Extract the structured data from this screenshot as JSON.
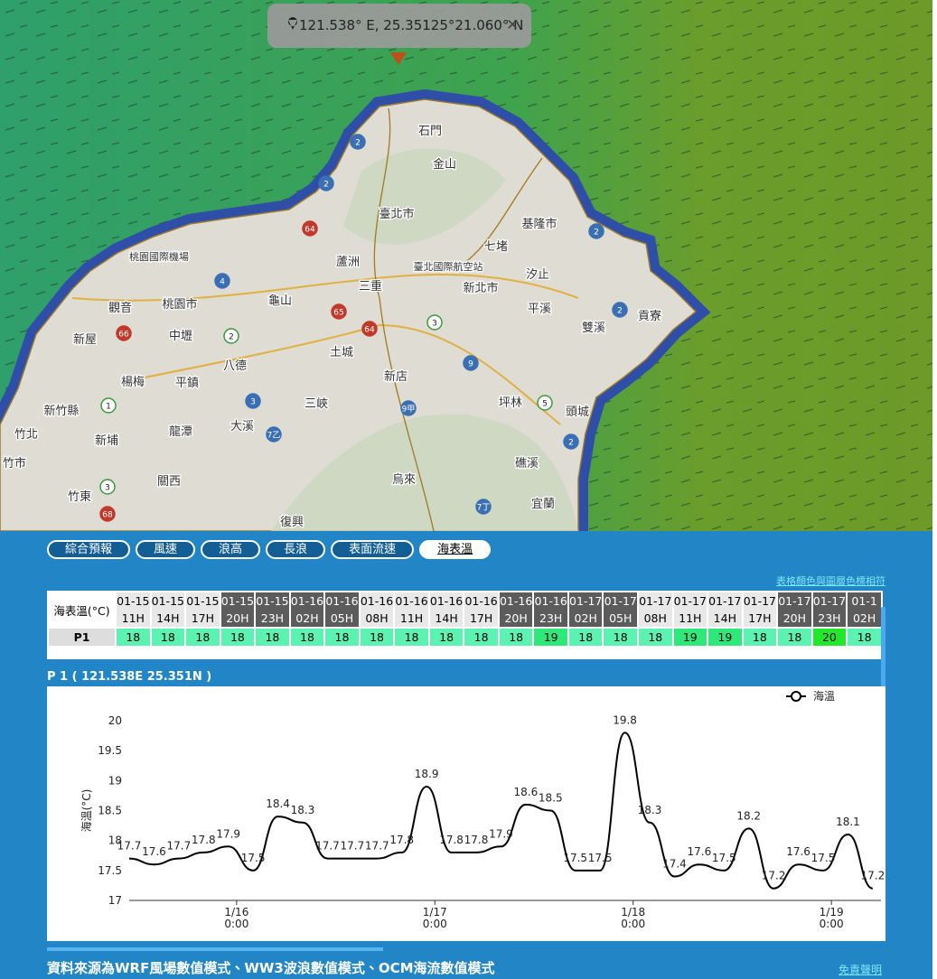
{
  "map": {
    "popup": "121.538° E, 25.35125°21.060° N",
    "places": [
      "石門",
      "金山",
      "臺北市",
      "基隆市",
      "七堵",
      "蘆洲",
      "臺北國際航空站",
      "三重",
      "新北市",
      "汐止",
      "桃園國際機場",
      "觀音",
      "桃園市",
      "龜山",
      "平溪",
      "雙溪",
      "貢寮",
      "新屋",
      "中壢",
      "八德",
      "土城",
      "楊梅",
      "平鎮",
      "新店",
      "三峽",
      "坪林",
      "頭城",
      "新竹縣",
      "竹北",
      "新埔",
      "龍潭",
      "大溪",
      "竹市",
      "礁溪",
      "關西",
      "烏來",
      "竹東",
      "宜蘭",
      "復興"
    ],
    "roads": [
      "2",
      "2",
      "64",
      "4",
      "66",
      "2",
      "65",
      "64",
      "3",
      "9",
      "9甲",
      "3",
      "1",
      "7乙",
      "5",
      "2",
      "3",
      "68",
      "7丁",
      "2",
      "2"
    ]
  },
  "tabs": [
    "綜合預報",
    "風速",
    "浪高",
    "長浪",
    "表面流速",
    "海表溫"
  ],
  "active_tab": 5,
  "legend_link": "表格顏色與圖層色標相符",
  "table": {
    "header": "海表溫(°C)",
    "columns": [
      {
        "date": "01-15",
        "hour": "11H",
        "shade": "light"
      },
      {
        "date": "01-15",
        "hour": "14H",
        "shade": "light"
      },
      {
        "date": "01-15",
        "hour": "17H",
        "shade": "light"
      },
      {
        "date": "01-15",
        "hour": "20H",
        "shade": "dark"
      },
      {
        "date": "01-15",
        "hour": "23H",
        "shade": "dark"
      },
      {
        "date": "01-16",
        "hour": "02H",
        "shade": "dark"
      },
      {
        "date": "01-16",
        "hour": "05H",
        "shade": "dark"
      },
      {
        "date": "01-16",
        "hour": "08H",
        "shade": "light"
      },
      {
        "date": "01-16",
        "hour": "11H",
        "shade": "light"
      },
      {
        "date": "01-16",
        "hour": "14H",
        "shade": "light"
      },
      {
        "date": "01-16",
        "hour": "17H",
        "shade": "light"
      },
      {
        "date": "01-16",
        "hour": "20H",
        "shade": "dark"
      },
      {
        "date": "01-16",
        "hour": "23H",
        "shade": "dark"
      },
      {
        "date": "01-17",
        "hour": "02H",
        "shade": "dark"
      },
      {
        "date": "01-17",
        "hour": "05H",
        "shade": "dark"
      },
      {
        "date": "01-17",
        "hour": "08H",
        "shade": "light"
      },
      {
        "date": "01-17",
        "hour": "11H",
        "shade": "light"
      },
      {
        "date": "01-17",
        "hour": "14H",
        "shade": "light"
      },
      {
        "date": "01-17",
        "hour": "17H",
        "shade": "light"
      },
      {
        "date": "01-17",
        "hour": "20H",
        "shade": "dark"
      },
      {
        "date": "01-17",
        "hour": "23H",
        "shade": "dark"
      },
      {
        "date": "01-1",
        "hour": "02H",
        "shade": "dark"
      }
    ],
    "row_label": "P1",
    "values": [
      18,
      18,
      18,
      18,
      18,
      18,
      18,
      18,
      18,
      18,
      18,
      18,
      19,
      18,
      18,
      18,
      19,
      19,
      18,
      18,
      20,
      18
    ],
    "color_scale": [
      {
        "value": 18,
        "color": "#5cf2b2"
      },
      {
        "value": 19,
        "color": "#2ee87a"
      },
      {
        "value": 20,
        "color": "#22e82a"
      }
    ]
  },
  "chart_data": {
    "type": "line",
    "title": "P 1 ( 121.538E 25.351N )",
    "y_label": "海溫(°C)",
    "x": [
      0,
      3,
      6,
      9,
      12,
      15,
      18,
      21,
      24,
      27,
      30,
      33,
      36,
      39,
      42,
      45,
      48,
      51,
      54,
      57,
      60,
      63,
      66,
      69,
      72,
      75,
      78,
      81,
      84,
      87,
      90
    ],
    "series": [
      {
        "name": "海溫",
        "color": "#000000",
        "values": [
          17.7,
          17.6,
          17.7,
          17.8,
          17.9,
          17.5,
          18.4,
          18.3,
          17.7,
          17.7,
          17.7,
          17.8,
          18.9,
          17.8,
          17.8,
          17.9,
          18.6,
          18.5,
          17.5,
          17.5,
          19.8,
          18.3,
          17.4,
          17.6,
          17.5,
          18.2,
          17.2,
          17.6,
          17.5,
          18.1,
          17.2
        ]
      }
    ],
    "xlim": [
      0,
      91
    ],
    "xticks": [
      {
        "value": 13,
        "label": "1/16 0:00"
      },
      {
        "value": 37,
        "label": "1/17 0:00"
      },
      {
        "value": 61,
        "label": "1/18 0:00"
      },
      {
        "value": 85,
        "label": "1/19 0:00"
      }
    ],
    "ylim": [
      17,
      20
    ],
    "yticks": [
      17,
      17.5,
      18,
      18.5,
      19,
      19.5,
      20
    ]
  },
  "footer": {
    "source": "資料來源為WRF風場數值模式、WW3波浪數值模式、OCM海流數值模式",
    "disclaimer": "免責聲明"
  }
}
